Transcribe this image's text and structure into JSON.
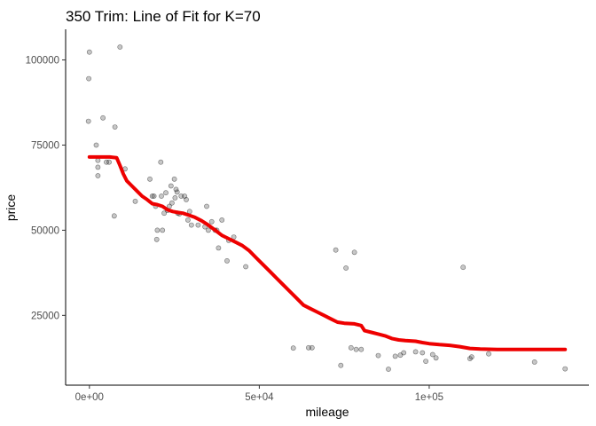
{
  "chart_data": {
    "type": "scatter",
    "title": "350 Trim: Line of Fit for K=70",
    "xlabel": "mileage",
    "ylabel": "price",
    "xlim": [
      -7000,
      147000
    ],
    "ylim": [
      4500,
      109000
    ],
    "x_ticks": [
      {
        "value": 0,
        "label": "0e+00"
      },
      {
        "value": 50000,
        "label": "5e+04"
      },
      {
        "value": 100000,
        "label": "1e+05"
      }
    ],
    "y_ticks": [
      {
        "value": 25000,
        "label": "25000"
      },
      {
        "value": 50000,
        "label": "50000"
      },
      {
        "value": 75000,
        "label": "75000"
      },
      {
        "value": 100000,
        "label": "100000"
      }
    ],
    "grid": false,
    "legend": "none",
    "colors": {
      "points": "#000000",
      "fit_line": "#ee0000"
    },
    "series": [
      {
        "type": "scatter",
        "points": [
          [
            0,
            102300
          ],
          [
            -200,
            94500
          ],
          [
            -300,
            82000
          ],
          [
            9000,
            103800
          ],
          [
            4000,
            83000
          ],
          [
            7500,
            80300
          ],
          [
            2000,
            75000
          ],
          [
            2500,
            70500
          ],
          [
            2500,
            68500
          ],
          [
            2500,
            66000
          ],
          [
            5000,
            70000
          ],
          [
            5800,
            70000
          ],
          [
            10500,
            68000
          ],
          [
            7300,
            54200
          ],
          [
            13500,
            58500
          ],
          [
            17800,
            65000
          ],
          [
            18500,
            60000
          ],
          [
            19000,
            60000
          ],
          [
            19500,
            57000
          ],
          [
            20000,
            50000
          ],
          [
            19800,
            47300
          ],
          [
            21000,
            70000
          ],
          [
            21200,
            60000
          ],
          [
            21500,
            50000
          ],
          [
            22000,
            55000
          ],
          [
            22500,
            61000
          ],
          [
            23000,
            55800
          ],
          [
            23500,
            57000
          ],
          [
            24000,
            63000
          ],
          [
            24300,
            58000
          ],
          [
            25000,
            65000
          ],
          [
            25200,
            59500
          ],
          [
            25500,
            62000
          ],
          [
            25800,
            61200
          ],
          [
            26000,
            55000
          ],
          [
            26500,
            54800
          ],
          [
            27000,
            60000
          ],
          [
            28000,
            60000
          ],
          [
            28500,
            59000
          ],
          [
            29000,
            53000
          ],
          [
            29500,
            55500
          ],
          [
            30000,
            51500
          ],
          [
            32000,
            51500
          ],
          [
            34000,
            51000
          ],
          [
            35000,
            50000
          ],
          [
            34500,
            57000
          ],
          [
            36000,
            52500
          ],
          [
            37000,
            50000
          ],
          [
            37500,
            50000
          ],
          [
            38000,
            44800
          ],
          [
            39000,
            53000
          ],
          [
            40500,
            41000
          ],
          [
            41000,
            47000
          ],
          [
            42500,
            48000
          ],
          [
            46000,
            39300
          ],
          [
            60000,
            15400
          ],
          [
            64500,
            15500
          ],
          [
            65500,
            15500
          ],
          [
            72500,
            44200
          ],
          [
            74000,
            10300
          ],
          [
            75500,
            38900
          ],
          [
            77000,
            15500
          ],
          [
            78000,
            43500
          ],
          [
            78500,
            15000
          ],
          [
            80000,
            15000
          ],
          [
            85000,
            13200
          ],
          [
            88000,
            9200
          ],
          [
            90000,
            13000
          ],
          [
            91500,
            13300
          ],
          [
            92500,
            14000
          ],
          [
            96000,
            14300
          ],
          [
            98000,
            14000
          ],
          [
            99000,
            11500
          ],
          [
            101000,
            13500
          ],
          [
            102000,
            12500
          ],
          [
            110000,
            39100
          ],
          [
            112000,
            12300
          ],
          [
            112500,
            12800
          ],
          [
            117500,
            13700
          ],
          [
            131000,
            11300
          ],
          [
            140000,
            9300
          ]
        ]
      },
      {
        "type": "line",
        "name": "",
        "points": [
          [
            0,
            71500
          ],
          [
            6000,
            71500
          ],
          [
            8000,
            71300
          ],
          [
            9000,
            69000
          ],
          [
            10000,
            66500
          ],
          [
            11000,
            64500
          ],
          [
            12500,
            63000
          ],
          [
            14000,
            61500
          ],
          [
            15500,
            60000
          ],
          [
            17000,
            59000
          ],
          [
            18500,
            57800
          ],
          [
            20000,
            57500
          ],
          [
            21500,
            57000
          ],
          [
            23000,
            56000
          ],
          [
            24500,
            55500
          ],
          [
            26000,
            55200
          ],
          [
            27500,
            55000
          ],
          [
            29000,
            54500
          ],
          [
            31000,
            53800
          ],
          [
            33000,
            52800
          ],
          [
            35000,
            51500
          ],
          [
            37000,
            50000
          ],
          [
            39000,
            48500
          ],
          [
            41000,
            47500
          ],
          [
            43000,
            46500
          ],
          [
            45000,
            45500
          ],
          [
            47000,
            44000
          ],
          [
            49000,
            42000
          ],
          [
            51000,
            40000
          ],
          [
            53000,
            38000
          ],
          [
            55000,
            36000
          ],
          [
            57000,
            34000
          ],
          [
            59000,
            32000
          ],
          [
            61000,
            30000
          ],
          [
            63000,
            28000
          ],
          [
            65000,
            27000
          ],
          [
            67000,
            26000
          ],
          [
            69000,
            25000
          ],
          [
            71000,
            24000
          ],
          [
            73000,
            23000
          ],
          [
            75000,
            22700
          ],
          [
            78000,
            22500
          ],
          [
            80000,
            22000
          ],
          [
            81000,
            20500
          ],
          [
            83000,
            20000
          ],
          [
            85000,
            19500
          ],
          [
            87000,
            19000
          ],
          [
            89000,
            18200
          ],
          [
            91000,
            17800
          ],
          [
            93000,
            17600
          ],
          [
            96000,
            17400
          ],
          [
            98000,
            17000
          ],
          [
            100000,
            16700
          ],
          [
            103000,
            16400
          ],
          [
            106000,
            16200
          ],
          [
            109000,
            15800
          ],
          [
            112000,
            15300
          ],
          [
            115000,
            15100
          ],
          [
            120000,
            15000
          ],
          [
            130000,
            15000
          ],
          [
            140000,
            15000
          ]
        ]
      }
    ]
  }
}
